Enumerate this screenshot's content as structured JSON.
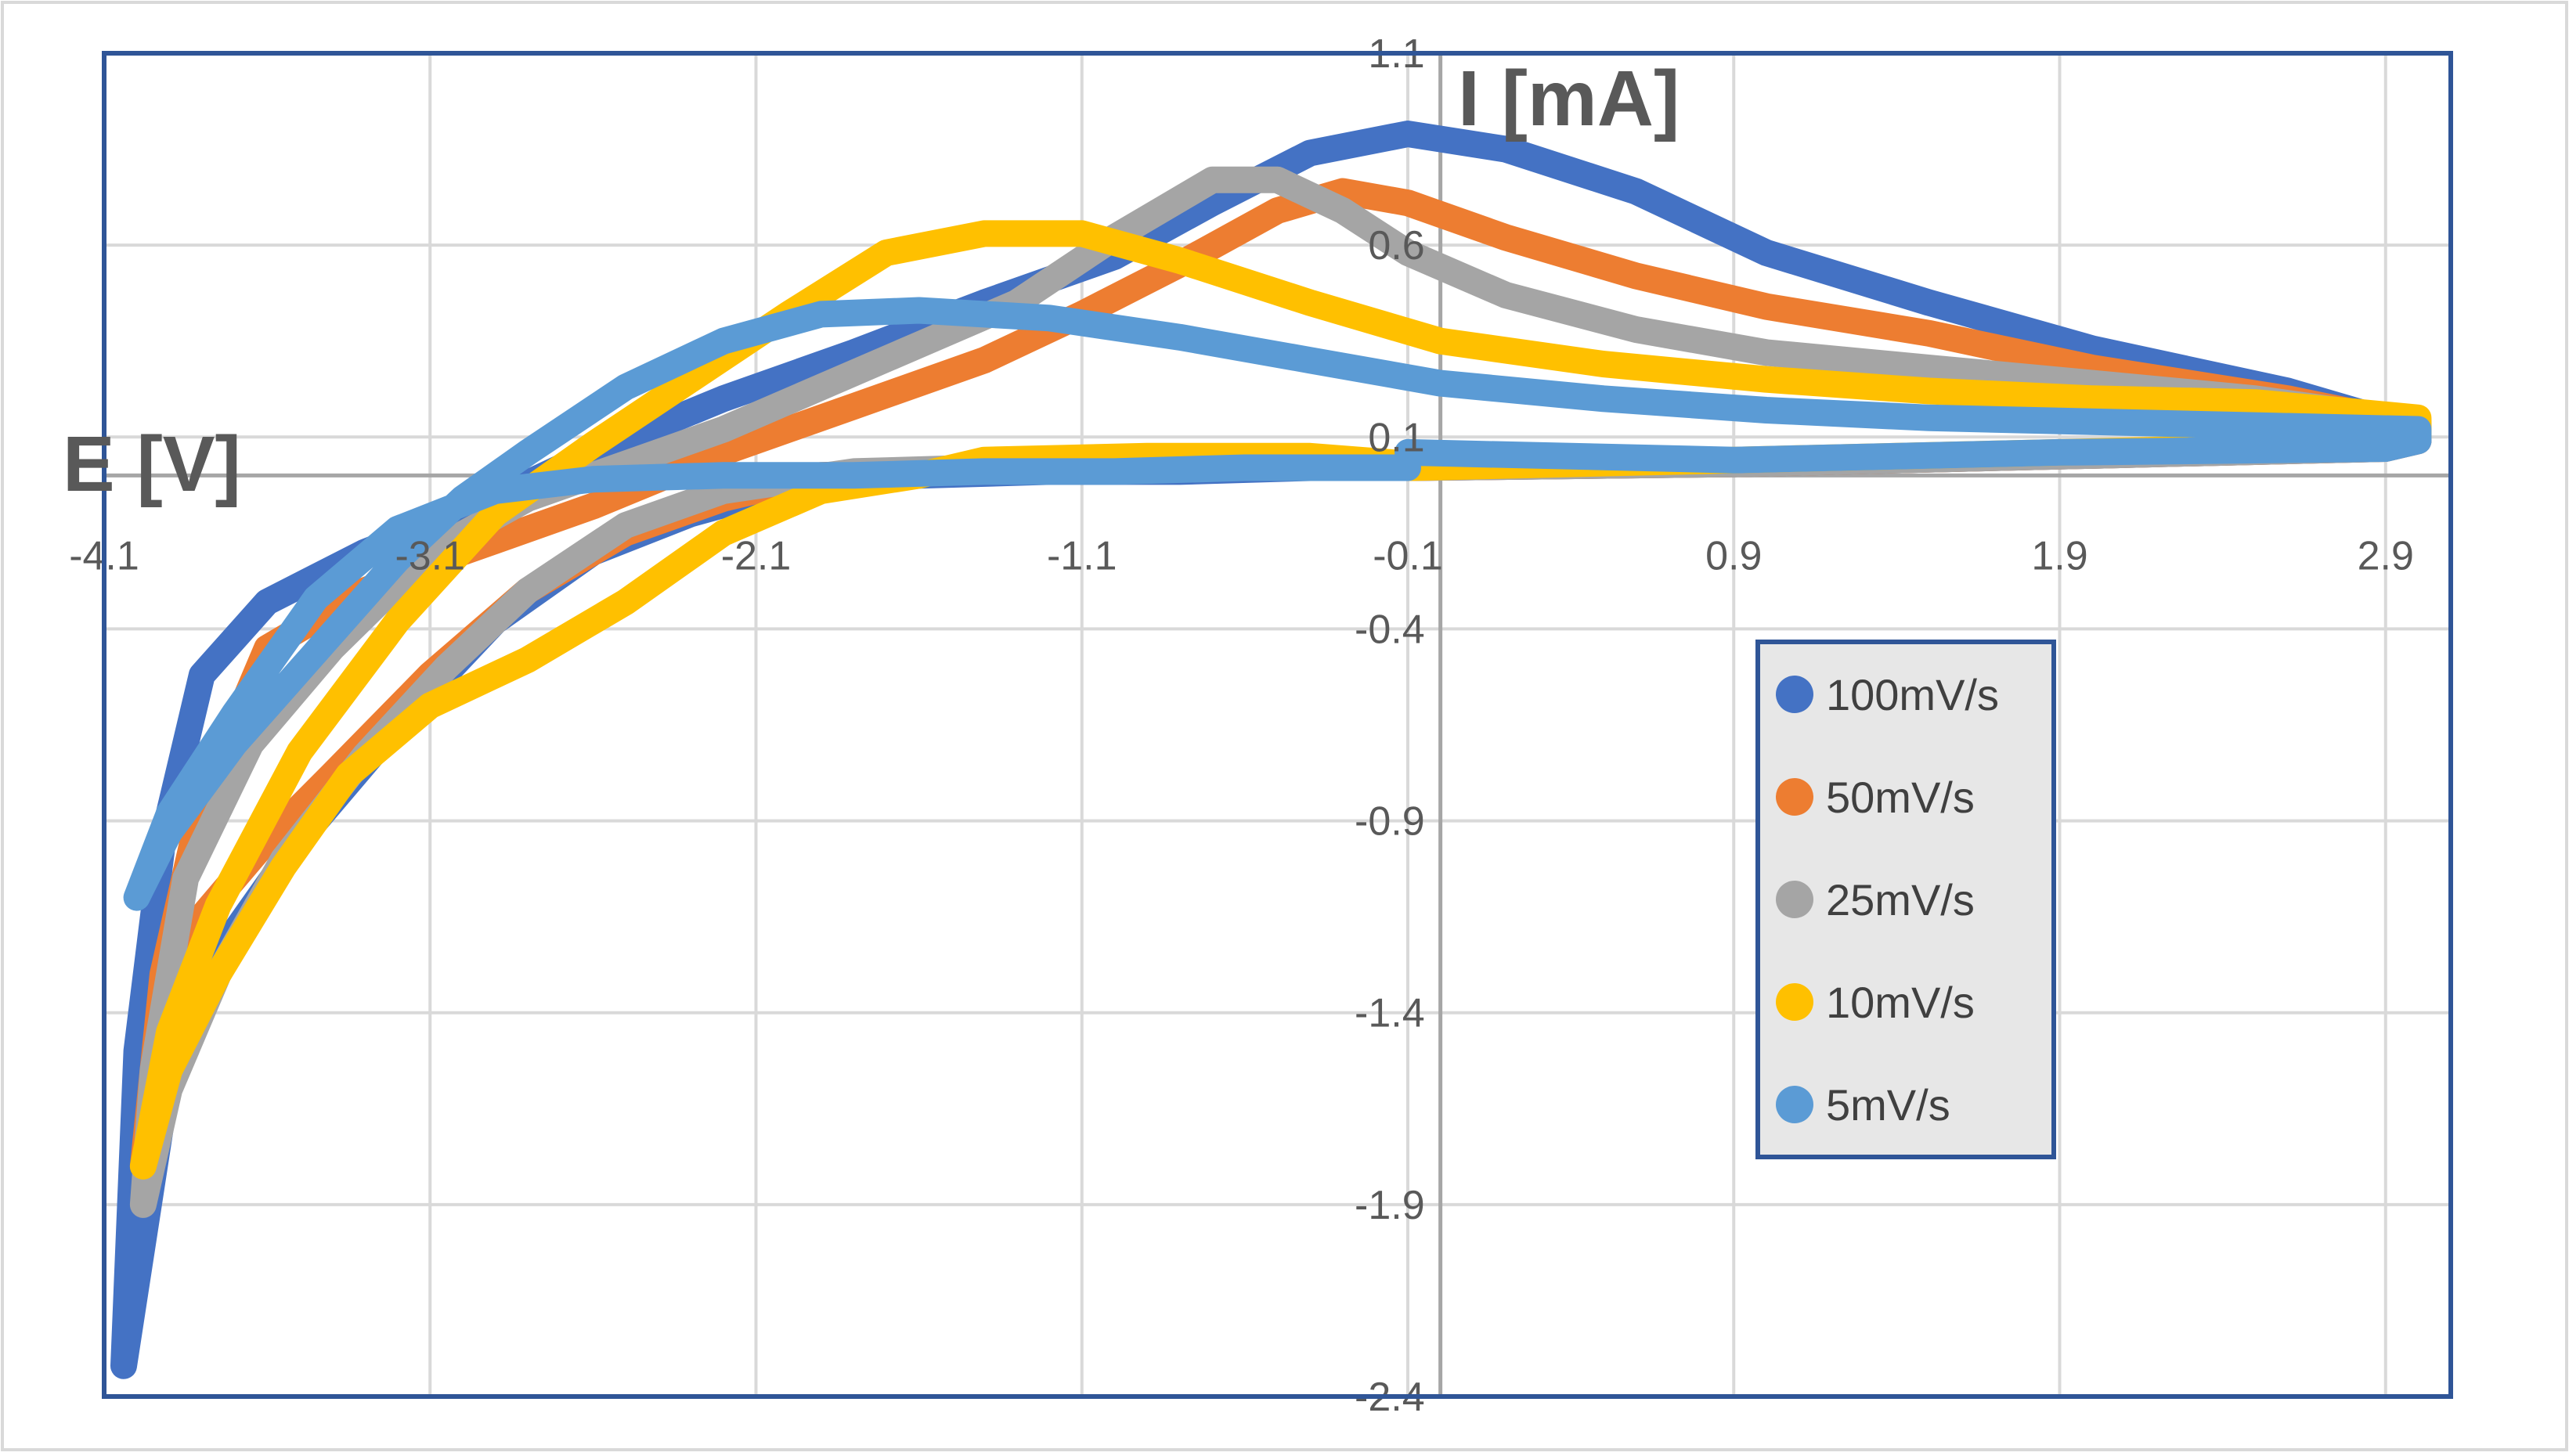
{
  "chart_data": {
    "type": "line",
    "title": "",
    "xlabel": "E [V]",
    "ylabel": "I [mA]",
    "xlim": [
      -4.1,
      3.1
    ],
    "ylim": [
      -2.4,
      1.1
    ],
    "x_ticks": [
      -4.1,
      -3.1,
      -2.1,
      -1.1,
      -0.1,
      0.9,
      1.9,
      2.9
    ],
    "y_ticks": [
      1.1,
      0.6,
      0.1,
      -0.4,
      -0.9,
      -1.4,
      -1.9,
      -2.4
    ],
    "x_tick_labels": [
      "-4.1",
      "-3.1",
      "-2.1",
      "-1.1",
      "-0.1",
      "0.9",
      "1.9",
      "2.9"
    ],
    "y_tick_labels": [
      "1.1",
      "0.6",
      "0.1",
      "-0.4",
      "-0.9",
      "-1.4",
      "-1.9",
      "-2.4"
    ],
    "grid": true,
    "legend_position": "right-middle",
    "series": [
      {
        "name": "100mV/s",
        "color": "#4472C4",
        "x": [
          -0.1,
          0.9,
          1.9,
          2.9,
          3.0,
          3.0,
          2.6,
          2.0,
          1.5,
          1.0,
          0.6,
          0.2,
          -0.1,
          -0.4,
          -0.7,
          -1.0,
          -1.4,
          -1.8,
          -2.2,
          -2.6,
          -3.0,
          -3.3,
          -3.6,
          -3.8,
          -3.92,
          -4.0,
          -4.04,
          -4.0,
          -3.9,
          -3.75,
          -3.5,
          -3.2,
          -2.9,
          -2.6,
          -2.3,
          -2.0,
          -1.6,
          -1.2,
          -0.8,
          -0.4,
          -0.1
        ],
        "y": [
          0.02,
          0.03,
          0.05,
          0.07,
          0.09,
          0.12,
          0.22,
          0.33,
          0.45,
          0.58,
          0.74,
          0.85,
          0.89,
          0.84,
          0.71,
          0.57,
          0.45,
          0.32,
          0.2,
          0.06,
          -0.1,
          -0.2,
          -0.33,
          -0.52,
          -0.95,
          -1.5,
          -2.32,
          -2.1,
          -1.55,
          -1.25,
          -0.95,
          -0.65,
          -0.38,
          -0.2,
          -0.1,
          -0.03,
          0.0,
          0.01,
          0.01,
          0.02,
          0.02
        ]
      },
      {
        "name": "50mV/s",
        "color": "#ED7D31",
        "x": [
          -0.1,
          0.9,
          1.9,
          2.9,
          3.0,
          3.0,
          2.6,
          2.0,
          1.5,
          1.0,
          0.6,
          0.2,
          -0.1,
          -0.3,
          -0.5,
          -0.8,
          -1.1,
          -1.4,
          -1.8,
          -2.2,
          -2.6,
          -3.0,
          -3.3,
          -3.6,
          -3.8,
          -3.92,
          -3.98,
          -3.92,
          -3.8,
          -3.6,
          -3.4,
          -3.1,
          -2.8,
          -2.5,
          -2.2,
          -1.9,
          -1.5,
          -1.1,
          -0.7,
          -0.3,
          -0.1
        ],
        "y": [
          0.02,
          0.03,
          0.05,
          0.07,
          0.09,
          0.13,
          0.2,
          0.28,
          0.37,
          0.44,
          0.52,
          0.62,
          0.71,
          0.74,
          0.69,
          0.55,
          0.42,
          0.3,
          0.18,
          0.06,
          -0.08,
          -0.2,
          -0.3,
          -0.45,
          -0.85,
          -1.3,
          -1.8,
          -1.5,
          -1.15,
          -0.95,
          -0.78,
          -0.52,
          -0.3,
          -0.15,
          -0.06,
          0.0,
          0.01,
          0.02,
          0.02,
          0.02,
          0.02
        ]
      },
      {
        "name": "25mV/s",
        "color": "#A5A5A5",
        "x": [
          -0.1,
          0.9,
          1.9,
          2.9,
          3.0,
          3.0,
          2.5,
          2.0,
          1.5,
          1.0,
          0.6,
          0.2,
          -0.1,
          -0.3,
          -0.5,
          -0.7,
          -1.0,
          -1.3,
          -1.6,
          -1.9,
          -2.2,
          -2.5,
          -2.8,
          -3.1,
          -3.4,
          -3.65,
          -3.85,
          -3.95,
          -3.98,
          -3.9,
          -3.75,
          -3.55,
          -3.3,
          -3.05,
          -2.8,
          -2.5,
          -2.2,
          -1.8,
          -1.4,
          -1.0,
          -0.6,
          -0.2,
          -0.1
        ],
        "y": [
          0.02,
          0.03,
          0.05,
          0.07,
          0.09,
          0.14,
          0.2,
          0.24,
          0.28,
          0.32,
          0.38,
          0.47,
          0.58,
          0.69,
          0.77,
          0.77,
          0.62,
          0.45,
          0.34,
          0.23,
          0.12,
          0.03,
          -0.06,
          -0.2,
          -0.45,
          -0.7,
          -1.05,
          -1.55,
          -1.9,
          -1.6,
          -1.3,
          -1.0,
          -0.73,
          -0.5,
          -0.3,
          -0.13,
          -0.04,
          0.01,
          0.02,
          0.02,
          0.02,
          0.02,
          0.02
        ]
      },
      {
        "name": "10mV/s",
        "color": "#FFC000",
        "x": [
          -0.1,
          0.9,
          1.9,
          2.9,
          3.0,
          3.0,
          2.5,
          2.0,
          1.5,
          1.0,
          0.5,
          0.0,
          -0.4,
          -0.8,
          -1.1,
          -1.4,
          -1.7,
          -2.0,
          -2.3,
          -2.6,
          -2.9,
          -3.2,
          -3.5,
          -3.75,
          -3.9,
          -3.98,
          -3.9,
          -3.75,
          -3.55,
          -3.35,
          -3.1,
          -2.8,
          -2.5,
          -2.2,
          -1.9,
          -1.6,
          -1.4,
          -0.9,
          -0.4,
          -0.1
        ],
        "y": [
          0.02,
          0.04,
          0.06,
          0.08,
          0.1,
          0.15,
          0.19,
          0.2,
          0.22,
          0.25,
          0.29,
          0.35,
          0.45,
          0.56,
          0.63,
          0.63,
          0.58,
          0.42,
          0.25,
          0.08,
          -0.1,
          -0.38,
          -0.72,
          -1.12,
          -1.45,
          -1.8,
          -1.55,
          -1.3,
          -1.02,
          -0.78,
          -0.6,
          -0.48,
          -0.33,
          -0.15,
          -0.04,
          0.0,
          0.04,
          0.05,
          0.05,
          0.03
        ]
      },
      {
        "name": "5mV/s",
        "color": "#5B9BD5",
        "x": [
          -0.1,
          0.9,
          1.9,
          2.9,
          3.0,
          3.0,
          2.5,
          2.0,
          1.5,
          1.0,
          0.5,
          0.0,
          -0.4,
          -0.8,
          -1.2,
          -1.6,
          -1.9,
          -2.2,
          -2.5,
          -2.8,
          -3.0,
          -3.2,
          -3.45,
          -3.7,
          -3.9,
          -4.0,
          -3.9,
          -3.7,
          -3.45,
          -3.2,
          -2.9,
          -2.6,
          -2.2,
          -1.8,
          -1.4,
          -1.0,
          -0.6,
          -0.1
        ],
        "y": [
          0.06,
          0.04,
          0.06,
          0.07,
          0.09,
          0.12,
          0.13,
          0.14,
          0.15,
          0.17,
          0.2,
          0.24,
          0.3,
          0.36,
          0.41,
          0.43,
          0.42,
          0.35,
          0.23,
          0.06,
          -0.06,
          -0.22,
          -0.46,
          -0.7,
          -0.93,
          -1.1,
          -0.88,
          -0.62,
          -0.32,
          -0.14,
          -0.04,
          -0.01,
          0.0,
          0.0,
          0.01,
          0.01,
          0.02,
          0.02
        ]
      }
    ]
  }
}
